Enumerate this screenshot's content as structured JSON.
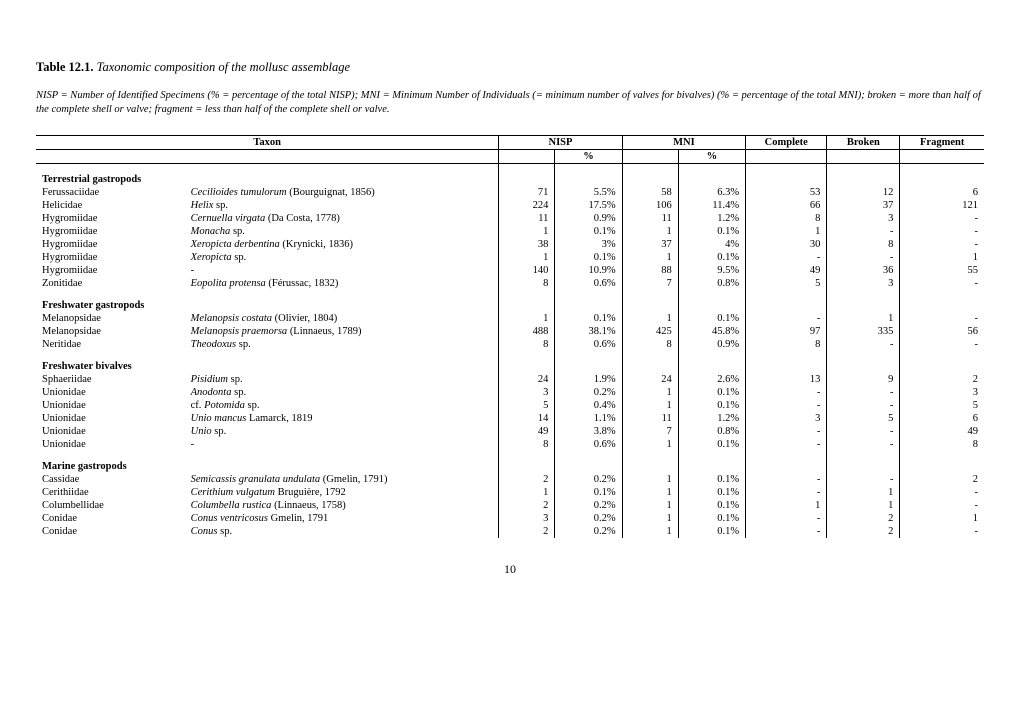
{
  "title_label": "Table 12.1.",
  "title_text": "Taxonomic composition of the mollusc assemblage",
  "definitions": "NISP = Number of Identified Specimens (% = percentage of the total NISP); MNI = Minimum Number of Individuals (= minimum number of valves for bivalves) (% = percentage of the total MNI); broken = more than half of the complete shell or valve; fragment = less than half of the complete shell or valve.",
  "columns": {
    "taxon": "Taxon",
    "nisp": "NISP",
    "mni": "MNI",
    "complete": "Complete",
    "broken": "Broken",
    "fragment": "Fragment",
    "pct": "%"
  },
  "sections": [
    {
      "heading": "Terrestrial gastropods",
      "rows": [
        {
          "family": "Ferussaciidae",
          "species_html": "<span class=\"species-ital\">Cecilioides tumulorum</span> (Bourguignat, 1856)",
          "nisp": "71",
          "nisp_pct": "5.5%",
          "mni": "58",
          "mni_pct": "6.3%",
          "complete": "53",
          "broken": "12",
          "fragment": "6"
        },
        {
          "family": "Helicidae",
          "species_html": "<span class=\"species-ital\">Helix</span> sp.",
          "nisp": "224",
          "nisp_pct": "17.5%",
          "mni": "106",
          "mni_pct": "11.4%",
          "complete": "66",
          "broken": "37",
          "fragment": "121"
        },
        {
          "family": "Hygromiidae",
          "species_html": "<span class=\"species-ital\">Cernuella virgata</span> (Da Costa, 1778)",
          "nisp": "11",
          "nisp_pct": "0.9%",
          "mni": "11",
          "mni_pct": "1.2%",
          "complete": "8",
          "broken": "3",
          "fragment": "-"
        },
        {
          "family": "Hygromiidae",
          "species_html": "<span class=\"species-ital\">Monacha</span> sp.",
          "nisp": "1",
          "nisp_pct": "0.1%",
          "mni": "1",
          "mni_pct": "0.1%",
          "complete": "1",
          "broken": "-",
          "fragment": "-"
        },
        {
          "family": "Hygromiidae",
          "species_html": "<span class=\"species-ital\">Xeropicta derbentina</span> (Krynicki, 1836)",
          "nisp": "38",
          "nisp_pct": "3%",
          "mni": "37",
          "mni_pct": "4%",
          "complete": "30",
          "broken": "8",
          "fragment": "-"
        },
        {
          "family": "Hygromiidae",
          "species_html": "<span class=\"species-ital\">Xeropicta</span> sp.",
          "nisp": "1",
          "nisp_pct": "0.1%",
          "mni": "1",
          "mni_pct": "0.1%",
          "complete": "-",
          "broken": "-",
          "fragment": "1"
        },
        {
          "family": "Hygromiidae",
          "species_html": "-",
          "nisp": "140",
          "nisp_pct": "10.9%",
          "mni": "88",
          "mni_pct": "9.5%",
          "complete": "49",
          "broken": "36",
          "fragment": "55"
        },
        {
          "family": "Zonitidae",
          "species_html": "<span class=\"species-ital\">Eopolita protensa</span> (Férussac, 1832)",
          "nisp": "8",
          "nisp_pct": "0.6%",
          "mni": "7",
          "mni_pct": "0.8%",
          "complete": "5",
          "broken": "3",
          "fragment": "-"
        }
      ]
    },
    {
      "heading": "Freshwater gastropods",
      "rows": [
        {
          "family": "Melanopsidae",
          "species_html": "<span class=\"species-ital\">Melanopsis costata</span> (Olivier, 1804)",
          "nisp": "1",
          "nisp_pct": "0.1%",
          "mni": "1",
          "mni_pct": "0.1%",
          "complete": "-",
          "broken": "1",
          "fragment": "-"
        },
        {
          "family": "Melanopsidae",
          "species_html": "<span class=\"species-ital\">Melanopsis praemorsa</span> (Linnaeus, 1789)",
          "nisp": "488",
          "nisp_pct": "38.1%",
          "mni": "425",
          "mni_pct": "45.8%",
          "complete": "97",
          "broken": "335",
          "fragment": "56"
        },
        {
          "family": "Neritidae",
          "species_html": "<span class=\"species-ital\">Theodoxus</span> sp.",
          "nisp": "8",
          "nisp_pct": "0.6%",
          "mni": "8",
          "mni_pct": "0.9%",
          "complete": "8",
          "broken": "-",
          "fragment": "-"
        }
      ]
    },
    {
      "heading": "Freshwater bivalves",
      "rows": [
        {
          "family": "Sphaeriidae",
          "species_html": "<span class=\"species-ital\">Pisidium</span> sp.",
          "nisp": "24",
          "nisp_pct": "1.9%",
          "mni": "24",
          "mni_pct": "2.6%",
          "complete": "13",
          "broken": "9",
          "fragment": "2"
        },
        {
          "family": "Unionidae",
          "species_html": "<span class=\"species-ital\">Anodonta</span> sp.",
          "nisp": "3",
          "nisp_pct": "0.2%",
          "mni": "1",
          "mni_pct": "0.1%",
          "complete": "-",
          "broken": "-",
          "fragment": "3"
        },
        {
          "family": "Unionidae",
          "species_html": "cf. <span class=\"species-ital\">Potomida</span> sp.",
          "nisp": "5",
          "nisp_pct": "0.4%",
          "mni": "1",
          "mni_pct": "0.1%",
          "complete": "-",
          "broken": "-",
          "fragment": "5"
        },
        {
          "family": "Unionidae",
          "species_html": "<span class=\"species-ital\">Unio mancus</span> Lamarck, 1819",
          "nisp": "14",
          "nisp_pct": "1.1%",
          "mni": "11",
          "mni_pct": "1.2%",
          "complete": "3",
          "broken": "5",
          "fragment": "6"
        },
        {
          "family": "Unionidae",
          "species_html": "<span class=\"species-ital\">Unio</span> sp.",
          "nisp": "49",
          "nisp_pct": "3.8%",
          "mni": "7",
          "mni_pct": "0.8%",
          "complete": "-",
          "broken": "-",
          "fragment": "49"
        },
        {
          "family": "Unionidae",
          "species_html": "-",
          "nisp": "8",
          "nisp_pct": "0.6%",
          "mni": "1",
          "mni_pct": "0.1%",
          "complete": "-",
          "broken": "-",
          "fragment": "8"
        }
      ]
    },
    {
      "heading": "Marine gastropods",
      "rows": [
        {
          "family": "Cassidae",
          "species_html": "<span class=\"species-ital\">Semicassis granulata undulata</span> (Gmelin, 1791)",
          "nisp": "2",
          "nisp_pct": "0.2%",
          "mni": "1",
          "mni_pct": "0.1%",
          "complete": "-",
          "broken": "-",
          "fragment": "2"
        },
        {
          "family": "Cerithiidae",
          "species_html": "<span class=\"species-ital\">Cerithium vulgatum</span> Bruguière, 1792",
          "nisp": "1",
          "nisp_pct": "0.1%",
          "mni": "1",
          "mni_pct": "0.1%",
          "complete": "-",
          "broken": "1",
          "fragment": "-"
        },
        {
          "family": "Columbellidae",
          "species_html": "<span class=\"species-ital\">Columbella rustica</span> (Linnaeus, 1758)",
          "nisp": "2",
          "nisp_pct": "0.2%",
          "mni": "1",
          "mni_pct": "0.1%",
          "complete": "1",
          "broken": "1",
          "fragment": "-"
        },
        {
          "family": "Conidae",
          "species_html": "<span class=\"species-ital\">Conus ventricosus</span> Gmelin, 1791",
          "nisp": "3",
          "nisp_pct": "0.2%",
          "mni": "1",
          "mni_pct": "0.1%",
          "complete": "-",
          "broken": "2",
          "fragment": "1"
        },
        {
          "family": "Conidae",
          "species_html": "<span class=\"species-ital\">Conus</span> sp.",
          "nisp": "2",
          "nisp_pct": "0.2%",
          "mni": "1",
          "mni_pct": "0.1%",
          "complete": "-",
          "broken": "2",
          "fragment": "-"
        }
      ]
    }
  ],
  "page_number": "10"
}
